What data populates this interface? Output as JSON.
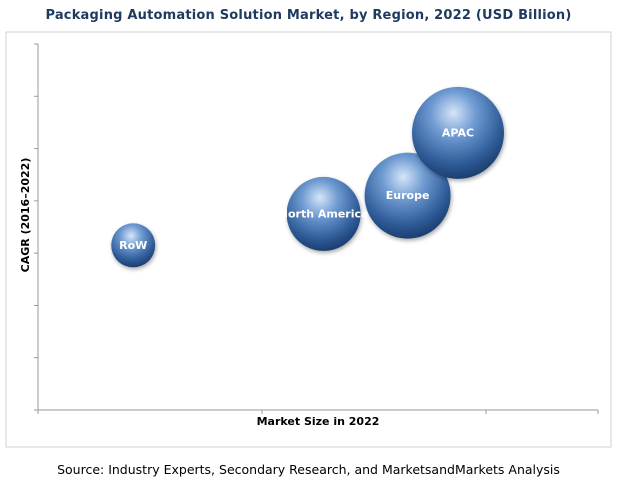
{
  "chart_data": {
    "type": "bubble",
    "title": "Packaging Automation Solution Market, by Region, 2022 (USD Billion)",
    "xlabel": "Market Size in 2022",
    "ylabel": "CAGR (2016–2022)",
    "xlim": [
      0,
      100
    ],
    "ylim": [
      0,
      7
    ],
    "grid": false,
    "series": [
      {
        "name": "RoW",
        "x": 17,
        "y": 3.15,
        "size": 22
      },
      {
        "name": "North America",
        "x": 51,
        "y": 3.75,
        "size": 37
      },
      {
        "name": "Europe",
        "x": 66,
        "y": 4.1,
        "size": 43
      },
      {
        "name": "APAC",
        "x": 75,
        "y": 5.3,
        "size": 46
      }
    ]
  },
  "source": "Source: Industry Experts, Secondary Research, and MarketsandMarkets Analysis",
  "colors": {
    "bubble_light": "#cfe0f5",
    "bubble_mid": "#4f7fbe",
    "bubble_dark": "#1c3f73",
    "axis": "#9a9a9a",
    "frame": "#cfcfcf",
    "title": "#1f3a5f"
  }
}
